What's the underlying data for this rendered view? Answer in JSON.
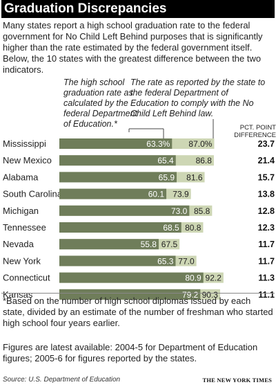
{
  "title": "Graduation Discrepancies",
  "intro": "Many states report a high school graduation rate to the federal government for No Child Left Behind purposes that is significantly higher than the rate estimated by the federal government itself. Below, the 10 states with the greatest difference between the two indicators.",
  "annotations": {
    "federal": "The high school graduation rate as calculated by the federal Department of Education.*",
    "state": "The rate as reported by the state to the federal Department of Education to comply with the No Child Left Behind law."
  },
  "column_header": "PCT. POINT DIFFERENCE",
  "footnote": "*Based on the number of high school diplomas issued by each state, divided by an estimate of the number of freshman who started high school four years earlier.",
  "latest": "Figures are latest available: 2004-5 for Department of Education figures; 2005-6 for figures reported by the states.",
  "source": "Source: U.S. Department of Education",
  "credit": "THE NEW YORK TIMES",
  "colors": {
    "federal_bar": "#6f7d5a",
    "state_bar": "#cdd6b4",
    "title_bg": "#000000"
  },
  "chart_data": {
    "type": "bar",
    "orientation": "horizontal",
    "categories": [
      "Mississippi",
      "New Mexico",
      "Alabama",
      "South Carolina",
      "Michigan",
      "Tennessee",
      "Nevada",
      "New York",
      "Connecticut",
      "Kansas"
    ],
    "series": [
      {
        "values": [
          63.3,
          65.4,
          65.9,
          60.1,
          73.0,
          68.5,
          55.8,
          65.3,
          80.9,
          79.2
        ],
        "labels": [
          "63.3%",
          "65.4",
          "65.9",
          "60.1",
          "73.0",
          "68.5",
          "55.8",
          "65.3",
          "80.9",
          "79.2"
        ]
      },
      {
        "values": [
          87.0,
          86.8,
          81.6,
          73.9,
          85.8,
          80.8,
          67.5,
          77.0,
          92.2,
          90.3
        ],
        "labels": [
          "87.0%",
          "86.8",
          "81.6",
          "73.9",
          "85.8",
          "80.8",
          "67.5",
          "77.0",
          "92.2",
          "90.3"
        ]
      }
    ],
    "difference": [
      "23.7",
      "21.4",
      "15.7",
      "13.8",
      "12.8",
      "12.3",
      "11.7",
      "11.7",
      "11.3",
      "11.1"
    ]
  }
}
